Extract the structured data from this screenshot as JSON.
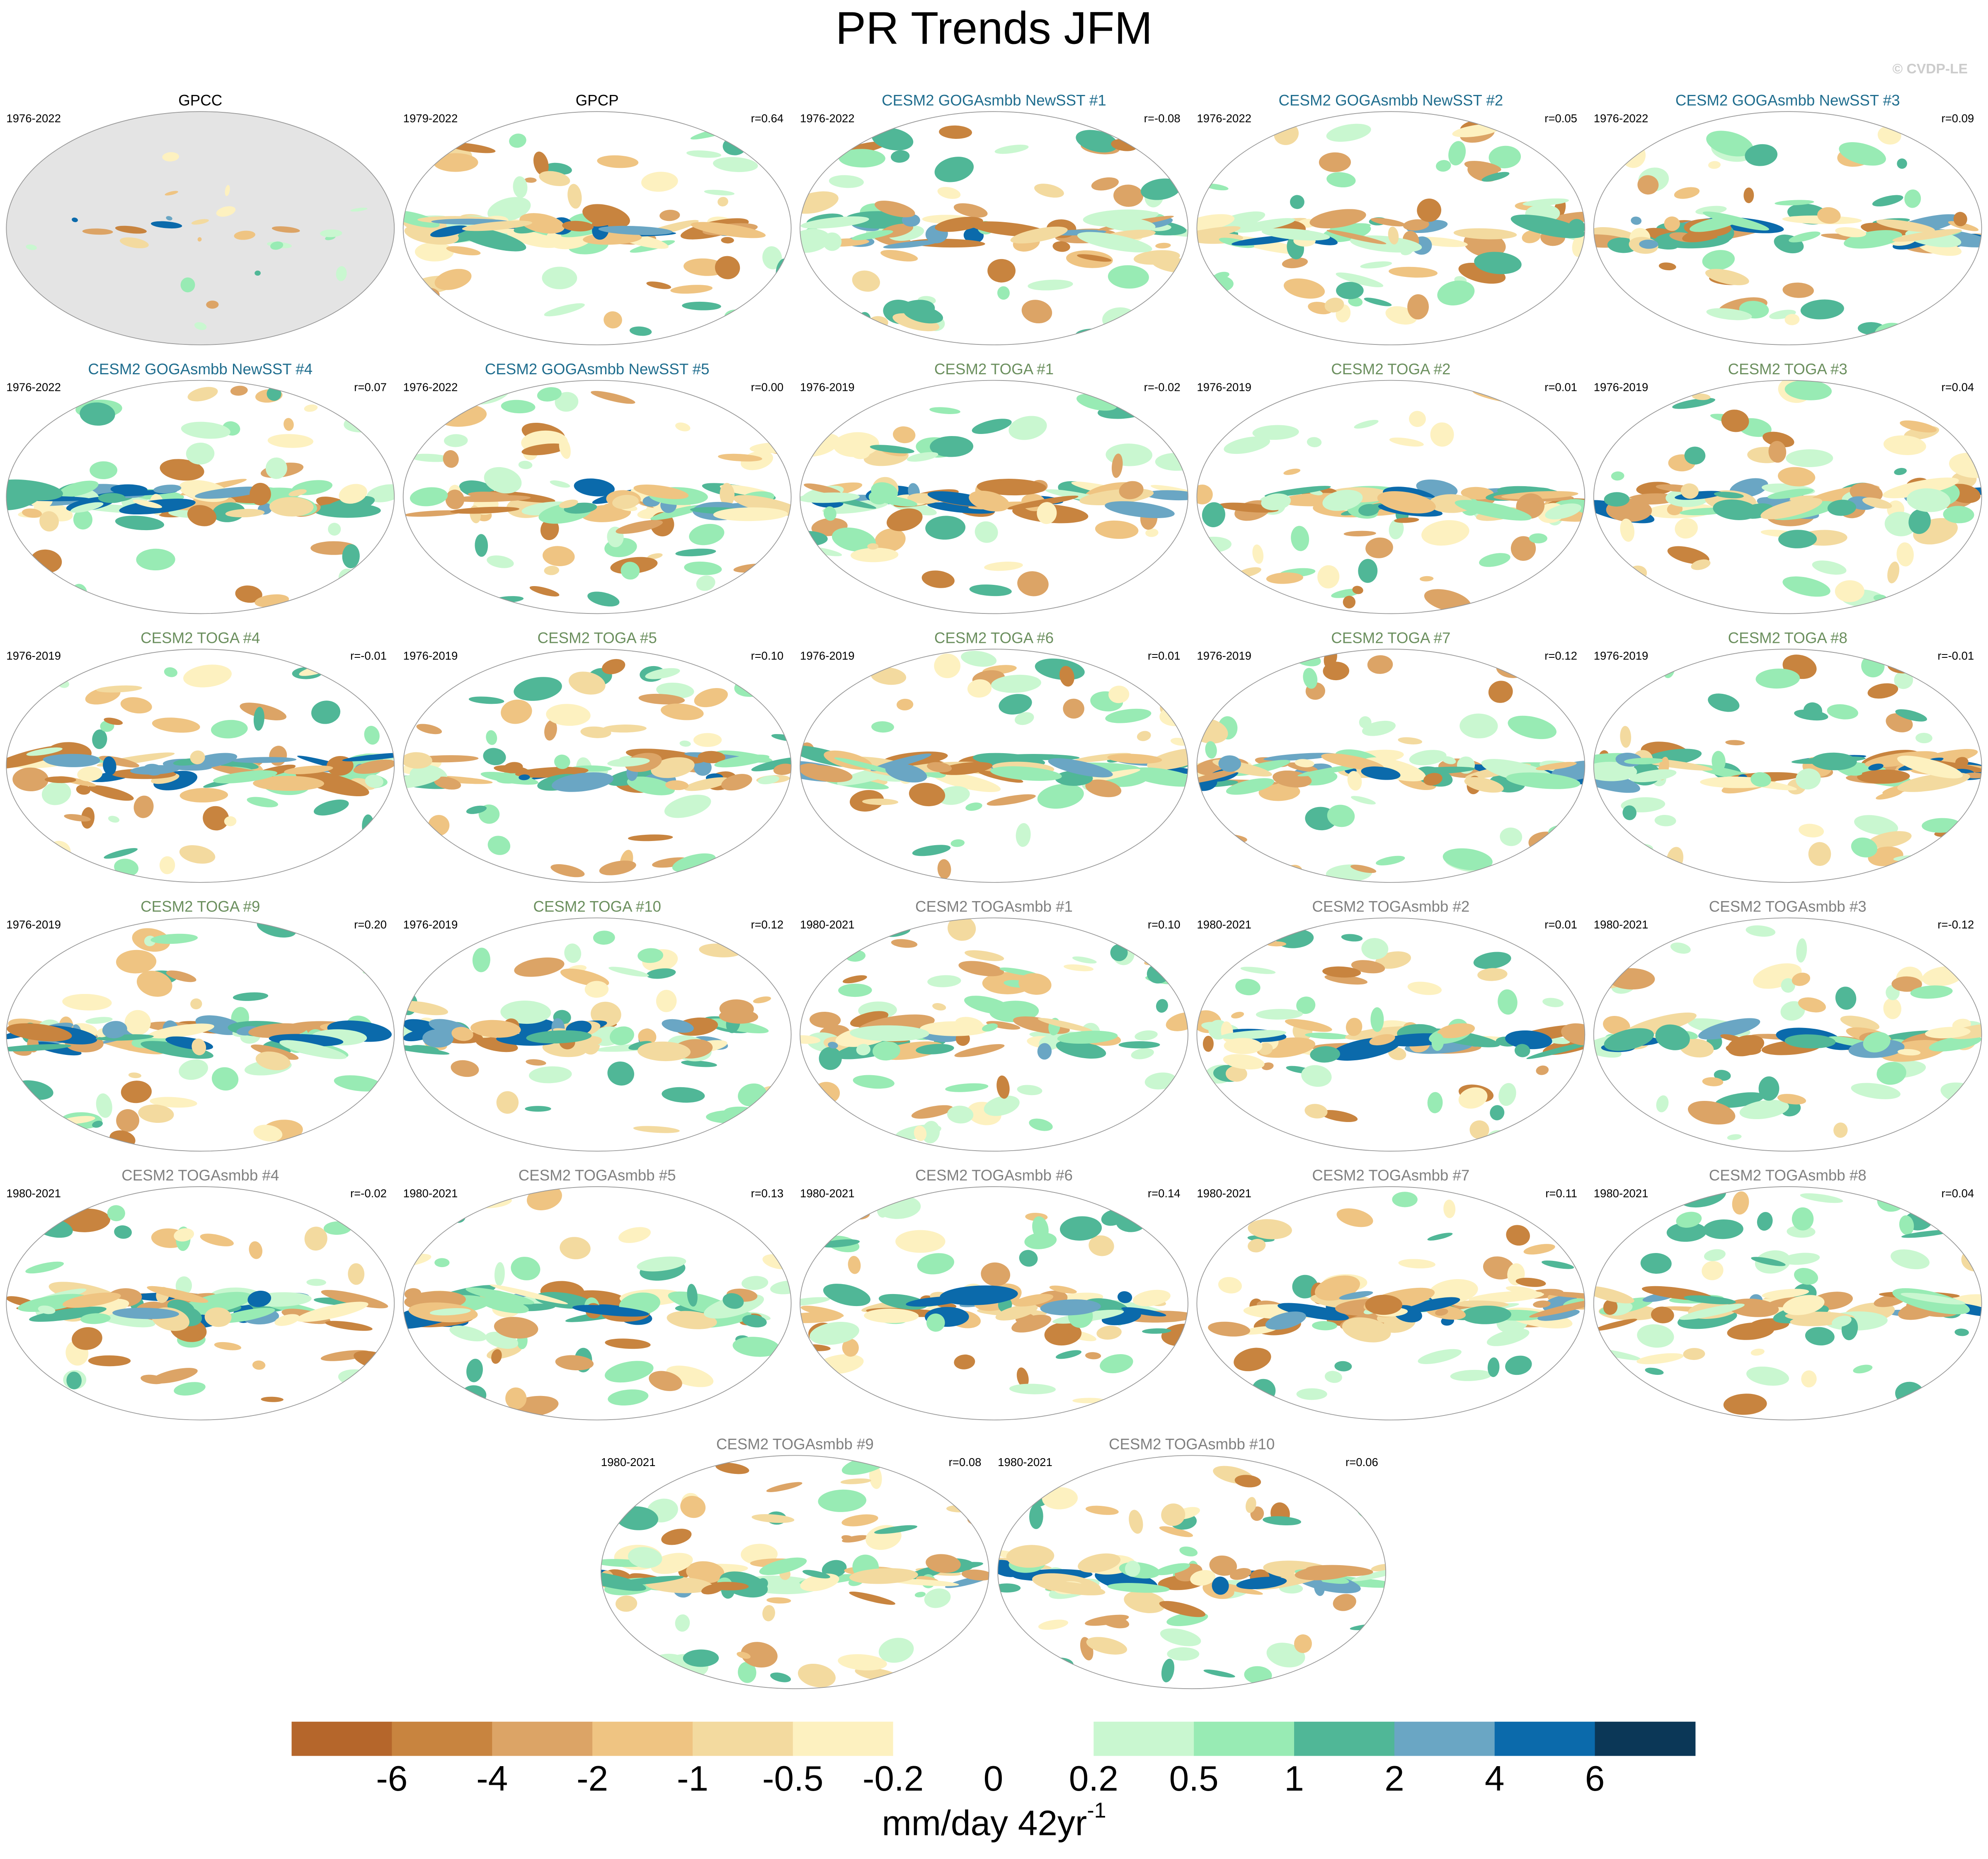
{
  "title": "PR Trends JFM",
  "credit": "© CVDP-LE",
  "panels": [
    {
      "title": "GPCC",
      "period": "1976-2022",
      "r": null,
      "title_color": "#000000"
    },
    {
      "title": "GPCP",
      "period": "1979-2022",
      "r": "r=0.64",
      "title_color": "#000000"
    },
    {
      "title": "CESM2 GOGAsmbb NewSST #1",
      "period": "1976-2022",
      "r": "r=-0.08",
      "title_color": "#1f6d8e"
    },
    {
      "title": "CESM2 GOGAsmbb NewSST #2",
      "period": "1976-2022",
      "r": "r=0.05",
      "title_color": "#1f6d8e"
    },
    {
      "title": "CESM2 GOGAsmbb NewSST #3",
      "period": "1976-2022",
      "r": "r=0.09",
      "title_color": "#1f6d8e"
    },
    {
      "title": "CESM2 GOGAsmbb NewSST #4",
      "period": "1976-2022",
      "r": "r=0.07",
      "title_color": "#1f6d8e"
    },
    {
      "title": "CESM2 GOGAsmbb NewSST #5",
      "period": "1976-2022",
      "r": "r=0.00",
      "title_color": "#1f6d8e"
    },
    {
      "title": "CESM2 TOGA #1",
      "period": "1976-2019",
      "r": "r=-0.02",
      "title_color": "#6b8f5e"
    },
    {
      "title": "CESM2 TOGA #2",
      "period": "1976-2019",
      "r": "r=0.01",
      "title_color": "#6b8f5e"
    },
    {
      "title": "CESM2 TOGA #3",
      "period": "1976-2019",
      "r": "r=0.04",
      "title_color": "#6b8f5e"
    },
    {
      "title": "CESM2 TOGA #4",
      "period": "1976-2019",
      "r": "r=-0.01",
      "title_color": "#6b8f5e"
    },
    {
      "title": "CESM2 TOGA #5",
      "period": "1976-2019",
      "r": "r=0.10",
      "title_color": "#6b8f5e"
    },
    {
      "title": "CESM2 TOGA #6",
      "period": "1976-2019",
      "r": "r=0.01",
      "title_color": "#6b8f5e"
    },
    {
      "title": "CESM2 TOGA #7",
      "period": "1976-2019",
      "r": "r=0.12",
      "title_color": "#6b8f5e"
    },
    {
      "title": "CESM2 TOGA #8",
      "period": "1976-2019",
      "r": "r=-0.01",
      "title_color": "#6b8f5e"
    },
    {
      "title": "CESM2 TOGA #9",
      "period": "1976-2019",
      "r": "r=0.20",
      "title_color": "#6b8f5e"
    },
    {
      "title": "CESM2 TOGA #10",
      "period": "1976-2019",
      "r": "r=0.12",
      "title_color": "#6b8f5e"
    },
    {
      "title": "CESM2 TOGAsmbb #1",
      "period": "1980-2021",
      "r": "r=0.10",
      "title_color": "#808080"
    },
    {
      "title": "CESM2 TOGAsmbb #2",
      "period": "1980-2021",
      "r": "r=0.01",
      "title_color": "#808080"
    },
    {
      "title": "CESM2 TOGAsmbb #3",
      "period": "1980-2021",
      "r": "r=-0.12",
      "title_color": "#808080"
    },
    {
      "title": "CESM2 TOGAsmbb #4",
      "period": "1980-2021",
      "r": "r=-0.02",
      "title_color": "#808080"
    },
    {
      "title": "CESM2 TOGAsmbb #5",
      "period": "1980-2021",
      "r": "r=0.13",
      "title_color": "#808080"
    },
    {
      "title": "CESM2 TOGAsmbb #6",
      "period": "1980-2021",
      "r": "r=0.14",
      "title_color": "#808080"
    },
    {
      "title": "CESM2 TOGAsmbb #7",
      "period": "1980-2021",
      "r": "r=0.11",
      "title_color": "#808080"
    },
    {
      "title": "CESM2 TOGAsmbb #8",
      "period": "1980-2021",
      "r": "r=0.04",
      "title_color": "#808080"
    },
    {
      "title": "CESM2 TOGAsmbb #9",
      "period": "1980-2021",
      "r": "r=0.08",
      "title_color": "#808080"
    },
    {
      "title": "CESM2 TOGAsmbb #10",
      "period": "1980-2021",
      "r": "r=0.06",
      "title_color": "#808080"
    }
  ],
  "colorbar": {
    "levels": [
      -6,
      -4,
      -2,
      -1,
      -0.5,
      -0.2,
      0,
      0.2,
      0.5,
      1,
      2,
      4,
      6
    ],
    "colors": [
      "#b5662b",
      "#c8843f",
      "#dca466",
      "#efc482",
      "#f3da9f",
      "#fdf1c0",
      "#ffffff",
      "#ffffff",
      "#c9f7d0",
      "#98ebb4",
      "#50b797",
      "#6aa6c4",
      "#0b6aab",
      "#0b3757"
    ],
    "label": "mm/day 42yr",
    "label_exponent": "-1"
  }
}
